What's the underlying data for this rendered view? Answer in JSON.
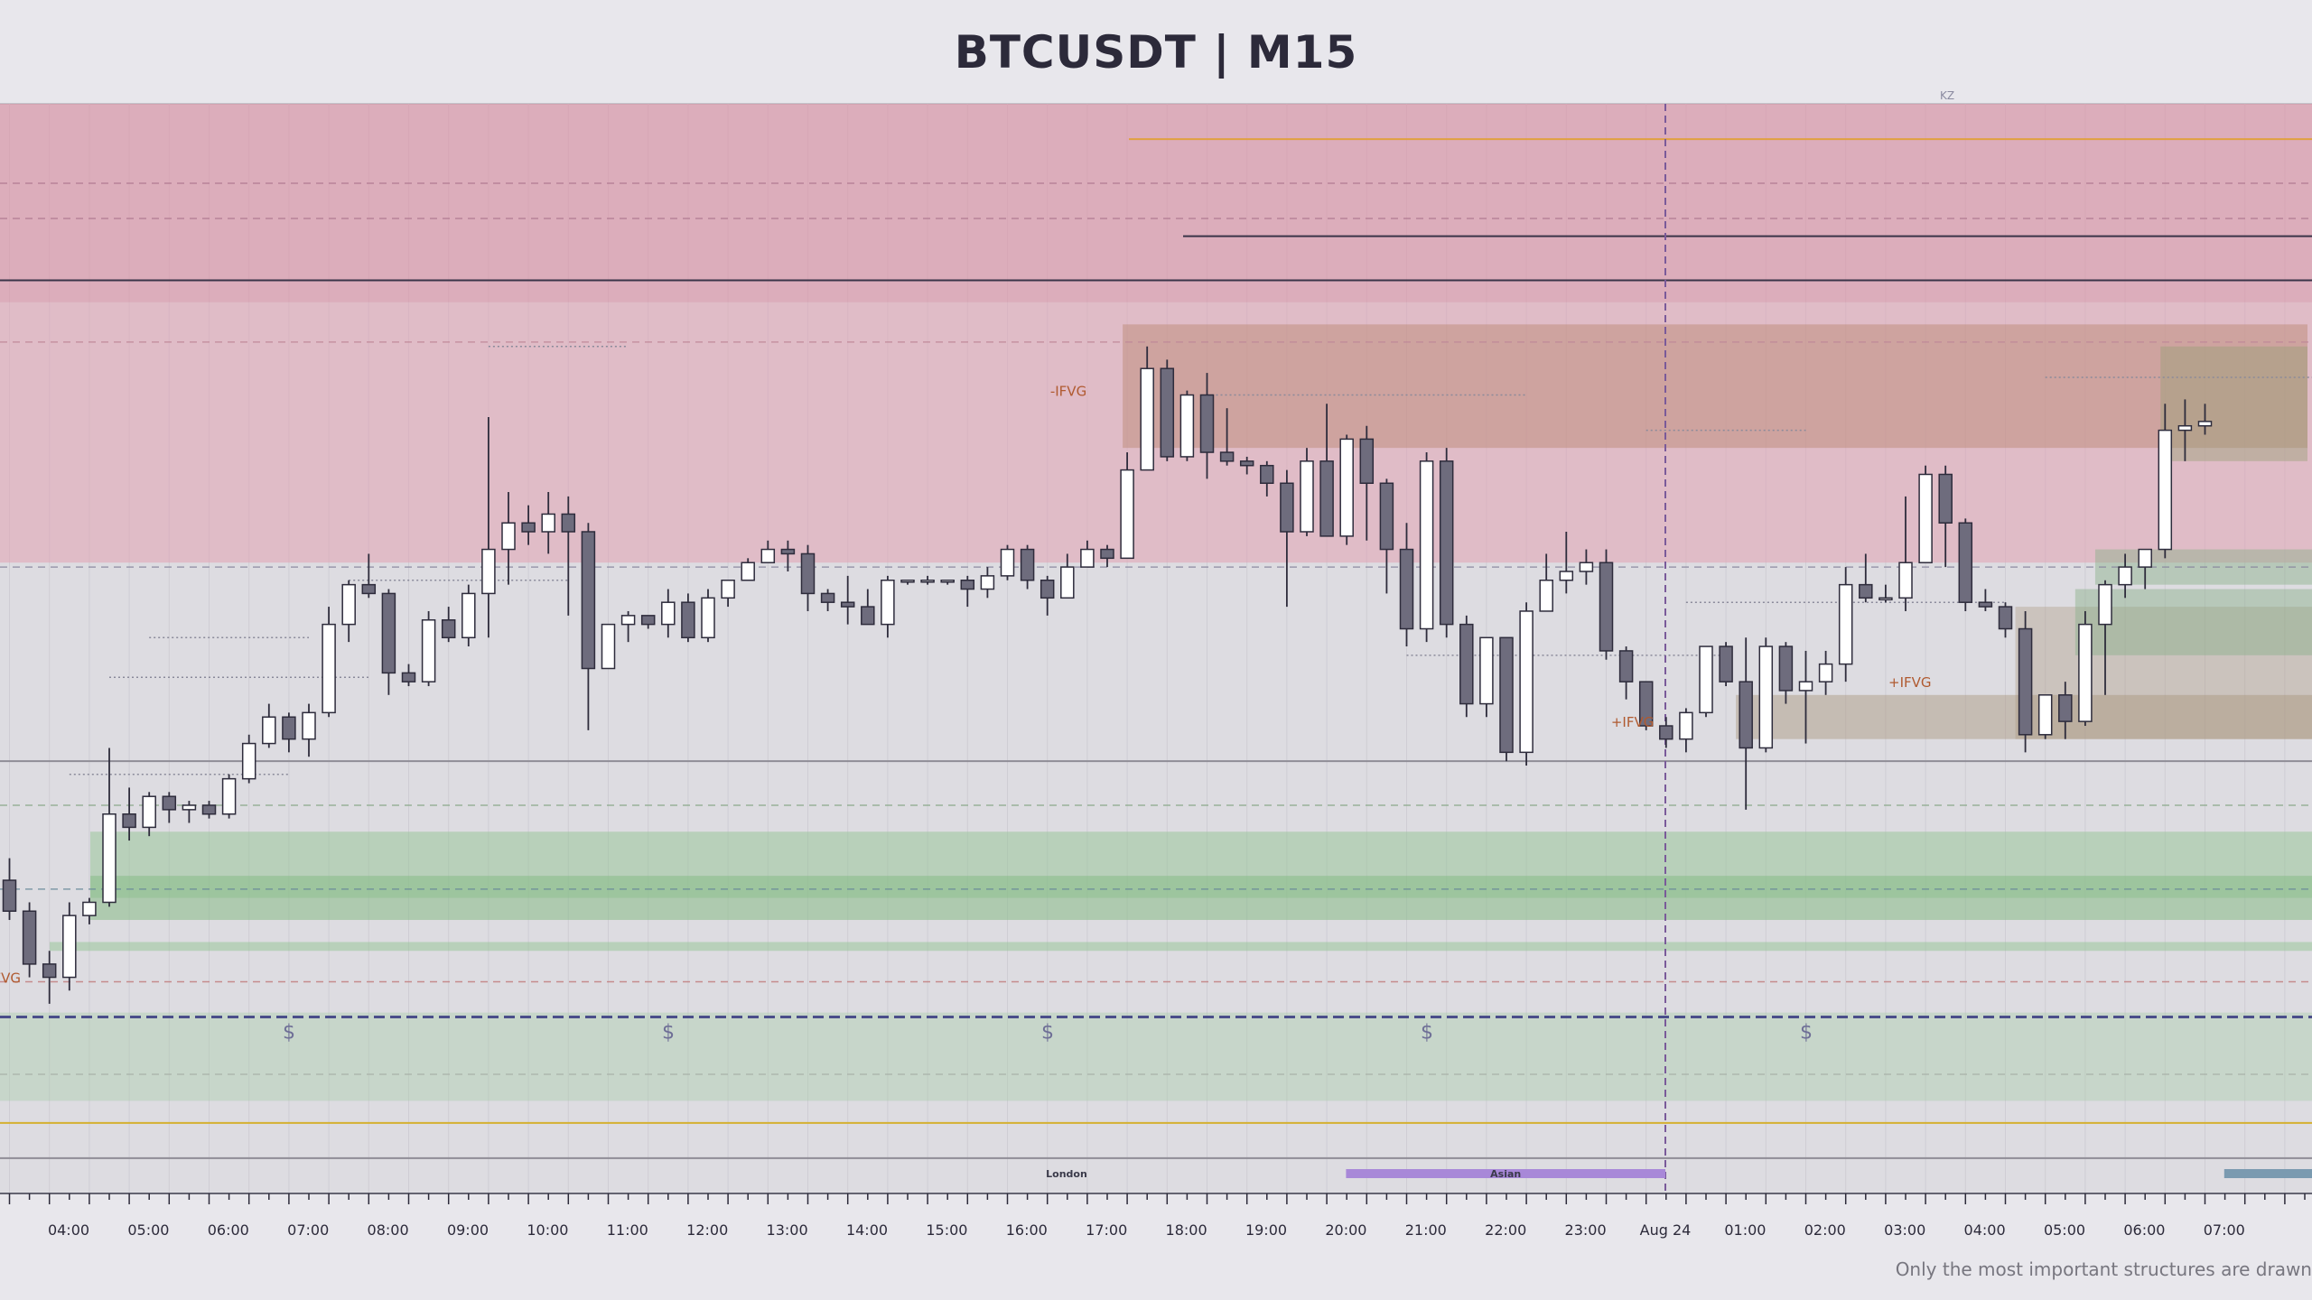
{
  "title": "BTCUSDT  |  M15",
  "footer_note": "Only the most important structures are drawn",
  "colors": {
    "bull_body": "#ffffff",
    "bear_body": "#6e6c7d",
    "wick": "#2e2c3c",
    "supply_zone": "#d98a9e",
    "demand_zone": "#8fbf8f",
    "bearish_fvg": "#b8866e",
    "bullish_fvg": "#a8947c",
    "liquidity_line": "#4a4e8a",
    "orange_line": "#e0a040",
    "gold_line": "#d4b030",
    "session_asian": "#a888d8",
    "session_london": "#b8b86a",
    "session_ny": "#7a9ab0"
  },
  "chart_data": {
    "type": "candlestick",
    "ylim": [
      76.4,
      101.1
    ],
    "x_labels": [
      "04:00",
      "05:00",
      "06:00",
      "07:00",
      "08:00",
      "09:00",
      "10:00",
      "11:00",
      "12:00",
      "13:00",
      "14:00",
      "15:00",
      "16:00",
      "17:00",
      "18:00",
      "19:00",
      "20:00",
      "21:00",
      "22:00",
      "23:00",
      "Aug 24",
      "01:00",
      "02:00",
      "03:00",
      "04:00",
      "05:00",
      "06:00",
      "07:00"
    ],
    "candles": [
      [
        83.5,
        82.8,
        84.0,
        82.6
      ],
      [
        82.8,
        81.6,
        83.0,
        81.3
      ],
      [
        81.6,
        81.3,
        81.9,
        80.7
      ],
      [
        81.3,
        82.7,
        83.0,
        81.0
      ],
      [
        82.7,
        83.0,
        83.1,
        82.5
      ],
      [
        83.0,
        85.0,
        86.5,
        82.9
      ],
      [
        85.0,
        84.7,
        85.6,
        84.4
      ],
      [
        84.7,
        85.4,
        85.5,
        84.5
      ],
      [
        85.4,
        85.1,
        85.5,
        84.8
      ],
      [
        85.1,
        85.2,
        85.3,
        84.8
      ],
      [
        85.2,
        85.0,
        85.3,
        84.9
      ],
      [
        85.0,
        85.8,
        85.9,
        84.9
      ],
      [
        85.8,
        86.6,
        86.8,
        85.7
      ],
      [
        86.6,
        87.2,
        87.5,
        86.5
      ],
      [
        87.2,
        86.7,
        87.3,
        86.4
      ],
      [
        86.7,
        87.3,
        87.5,
        86.3
      ],
      [
        87.3,
        89.3,
        89.7,
        87.2
      ],
      [
        89.3,
        90.2,
        90.3,
        88.9
      ],
      [
        90.2,
        90.0,
        90.9,
        89.9
      ],
      [
        90.0,
        88.2,
        90.1,
        87.7
      ],
      [
        88.2,
        88.0,
        88.4,
        87.9
      ],
      [
        88.0,
        89.4,
        89.6,
        87.9
      ],
      [
        89.4,
        89.0,
        89.7,
        88.9
      ],
      [
        89.0,
        90.0,
        90.2,
        88.8
      ],
      [
        90.0,
        91.0,
        94.0,
        89.0
      ],
      [
        91.0,
        91.6,
        92.3,
        90.2
      ],
      [
        91.6,
        91.4,
        92.0,
        91.1
      ],
      [
        91.4,
        91.8,
        92.3,
        90.9
      ],
      [
        91.8,
        91.4,
        92.2,
        89.5
      ],
      [
        91.4,
        88.3,
        91.6,
        86.9
      ],
      [
        88.3,
        89.3,
        89.3,
        88.3
      ],
      [
        89.3,
        89.5,
        89.6,
        88.9
      ],
      [
        89.5,
        89.3,
        89.5,
        89.2
      ],
      [
        89.3,
        89.8,
        90.1,
        89.0
      ],
      [
        89.8,
        89.0,
        90.0,
        88.9
      ],
      [
        89.0,
        89.9,
        90.1,
        88.9
      ],
      [
        89.9,
        90.3,
        90.3,
        89.7
      ],
      [
        90.3,
        90.7,
        90.8,
        90.3
      ],
      [
        90.7,
        91.0,
        91.2,
        90.7
      ],
      [
        91.0,
        90.9,
        91.2,
        90.5
      ],
      [
        90.9,
        90.0,
        91.1,
        89.6
      ],
      [
        90.0,
        89.8,
        90.1,
        89.6
      ],
      [
        89.8,
        89.7,
        90.4,
        89.3
      ],
      [
        89.7,
        89.3,
        90.1,
        89.3
      ],
      [
        89.3,
        90.3,
        90.4,
        89.0
      ],
      [
        90.3,
        90.3,
        90.3,
        90.2
      ],
      [
        90.3,
        90.3,
        90.4,
        90.2
      ],
      [
        90.3,
        90.3,
        90.3,
        90.2
      ],
      [
        90.3,
        90.1,
        90.4,
        89.7
      ],
      [
        90.1,
        90.4,
        90.6,
        89.9
      ],
      [
        90.4,
        91.0,
        91.1,
        90.3
      ],
      [
        91.0,
        90.3,
        91.1,
        90.1
      ],
      [
        90.3,
        89.9,
        90.4,
        89.5
      ],
      [
        89.9,
        90.6,
        90.9,
        89.9
      ],
      [
        90.6,
        91.0,
        91.2,
        90.6
      ],
      [
        91.0,
        90.8,
        91.1,
        90.6
      ],
      [
        90.8,
        92.8,
        93.2,
        90.8
      ],
      [
        92.8,
        95.1,
        95.6,
        92.8
      ],
      [
        95.1,
        93.1,
        95.3,
        93.0
      ],
      [
        93.1,
        94.5,
        94.6,
        93.0
      ],
      [
        94.5,
        93.2,
        95.0,
        92.6
      ],
      [
        93.2,
        93.0,
        94.2,
        92.9
      ],
      [
        93.0,
        92.9,
        93.1,
        92.7
      ],
      [
        92.9,
        92.5,
        93.0,
        92.2
      ],
      [
        92.5,
        91.4,
        92.8,
        89.7
      ],
      [
        91.4,
        93.0,
        93.3,
        91.3
      ],
      [
        93.0,
        91.3,
        94.3,
        91.3
      ],
      [
        91.3,
        93.5,
        93.6,
        91.1
      ],
      [
        93.5,
        92.5,
        93.8,
        91.2
      ],
      [
        92.5,
        91.0,
        92.6,
        90.0
      ],
      [
        91.0,
        89.2,
        91.6,
        88.8
      ],
      [
        89.2,
        93.0,
        93.2,
        88.9
      ],
      [
        93.0,
        89.3,
        93.3,
        89.0
      ],
      [
        89.3,
        87.5,
        89.5,
        87.2
      ],
      [
        87.5,
        89.0,
        89.0,
        87.2
      ],
      [
        89.0,
        86.4,
        89.0,
        86.2
      ],
      [
        86.4,
        89.6,
        89.8,
        86.1
      ],
      [
        89.6,
        90.3,
        90.9,
        89.6
      ],
      [
        90.3,
        90.5,
        91.4,
        90.0
      ],
      [
        90.5,
        90.7,
        91.0,
        90.2
      ],
      [
        90.7,
        88.7,
        91.0,
        88.5
      ],
      [
        88.7,
        88.0,
        88.8,
        87.6
      ],
      [
        88.0,
        87.0,
        88.0,
        86.9
      ],
      [
        87.0,
        86.7,
        87.2,
        86.5
      ],
      [
        86.7,
        87.3,
        87.4,
        86.4
      ],
      [
        87.3,
        88.8,
        88.8,
        87.2
      ],
      [
        88.8,
        88.0,
        88.9,
        87.9
      ],
      [
        88.0,
        86.5,
        89.0,
        85.1
      ],
      [
        86.5,
        88.8,
        89.0,
        86.4
      ],
      [
        88.8,
        87.8,
        88.9,
        87.5
      ],
      [
        87.8,
        88.0,
        88.7,
        86.6
      ],
      [
        88.0,
        88.4,
        88.7,
        87.7
      ],
      [
        88.4,
        90.2,
        90.6,
        88.0
      ],
      [
        90.2,
        89.9,
        90.9,
        89.8
      ],
      [
        89.9,
        89.9,
        90.2,
        89.8
      ],
      [
        89.9,
        90.7,
        92.2,
        89.6
      ],
      [
        90.7,
        92.7,
        92.9,
        90.7
      ],
      [
        92.7,
        91.6,
        92.9,
        90.6
      ],
      [
        91.6,
        89.8,
        91.7,
        89.6
      ],
      [
        89.8,
        89.7,
        90.1,
        89.6
      ],
      [
        89.7,
        89.2,
        89.8,
        89.0
      ],
      [
        89.2,
        86.8,
        89.6,
        86.4
      ],
      [
        86.8,
        87.7,
        87.7,
        86.7
      ],
      [
        87.7,
        87.1,
        88.0,
        86.7
      ],
      [
        87.1,
        89.3,
        89.6,
        87.0
      ],
      [
        89.3,
        90.2,
        90.3,
        87.7
      ],
      [
        90.2,
        90.6,
        90.9,
        89.9
      ],
      [
        90.6,
        91.0,
        91.0,
        90.1
      ],
      [
        91.0,
        93.7,
        94.3,
        90.8
      ],
      [
        93.7,
        93.8,
        94.4,
        93.0
      ],
      [
        93.8,
        93.9,
        94.3,
        93.6
      ]
    ],
    "labels": [
      {
        "text": "-IFVG",
        "x_index": 53.5,
        "y": 94.6
      },
      {
        "text": "+IFVG",
        "x_index": 81.6,
        "y": 87.1
      },
      {
        "text": "+IFVG",
        "x_index": 95.5,
        "y": 88.0
      },
      {
        "text": "FVG",
        "x_index": 0,
        "y": 81.3
      },
      {
        "text": "Asian"
      },
      {
        "text": "London"
      },
      {
        "text": "KZ"
      },
      {
        "text": "$"
      }
    ],
    "zones": [
      {
        "kind": "supply",
        "y1": 96.6,
        "y2": 101.1
      },
      {
        "kind": "supply-light",
        "y1": 90.7,
        "y2": 96.6
      },
      {
        "kind": "demand",
        "y1": 83.1,
        "y2": 84.6
      },
      {
        "kind": "demand-dark",
        "y1": 82.6,
        "y2": 83.6
      },
      {
        "kind": "demand",
        "y1": 81.9,
        "y2": 82.1
      },
      {
        "kind": "demand-low",
        "y1": 78.5,
        "y2": 80.5
      }
    ],
    "hlines": [
      {
        "y": 100.3,
        "color": "orange"
      },
      {
        "y": 98.1,
        "color": "dark"
      },
      {
        "y": 97.1,
        "color": "dark"
      },
      {
        "y": 86.2,
        "color": "gray"
      },
      {
        "y": 80.4,
        "color": "liquidity"
      },
      {
        "y": 78.0,
        "color": "gold"
      },
      {
        "y": 77.2,
        "color": "gray"
      }
    ],
    "sessions": [
      {
        "name": "Asian",
        "start_label": "20:00",
        "end_label": "Aug 24"
      },
      {
        "name": "London",
        "start_label": "02:00",
        "end_label": "07:00"
      }
    ],
    "grid": true
  }
}
